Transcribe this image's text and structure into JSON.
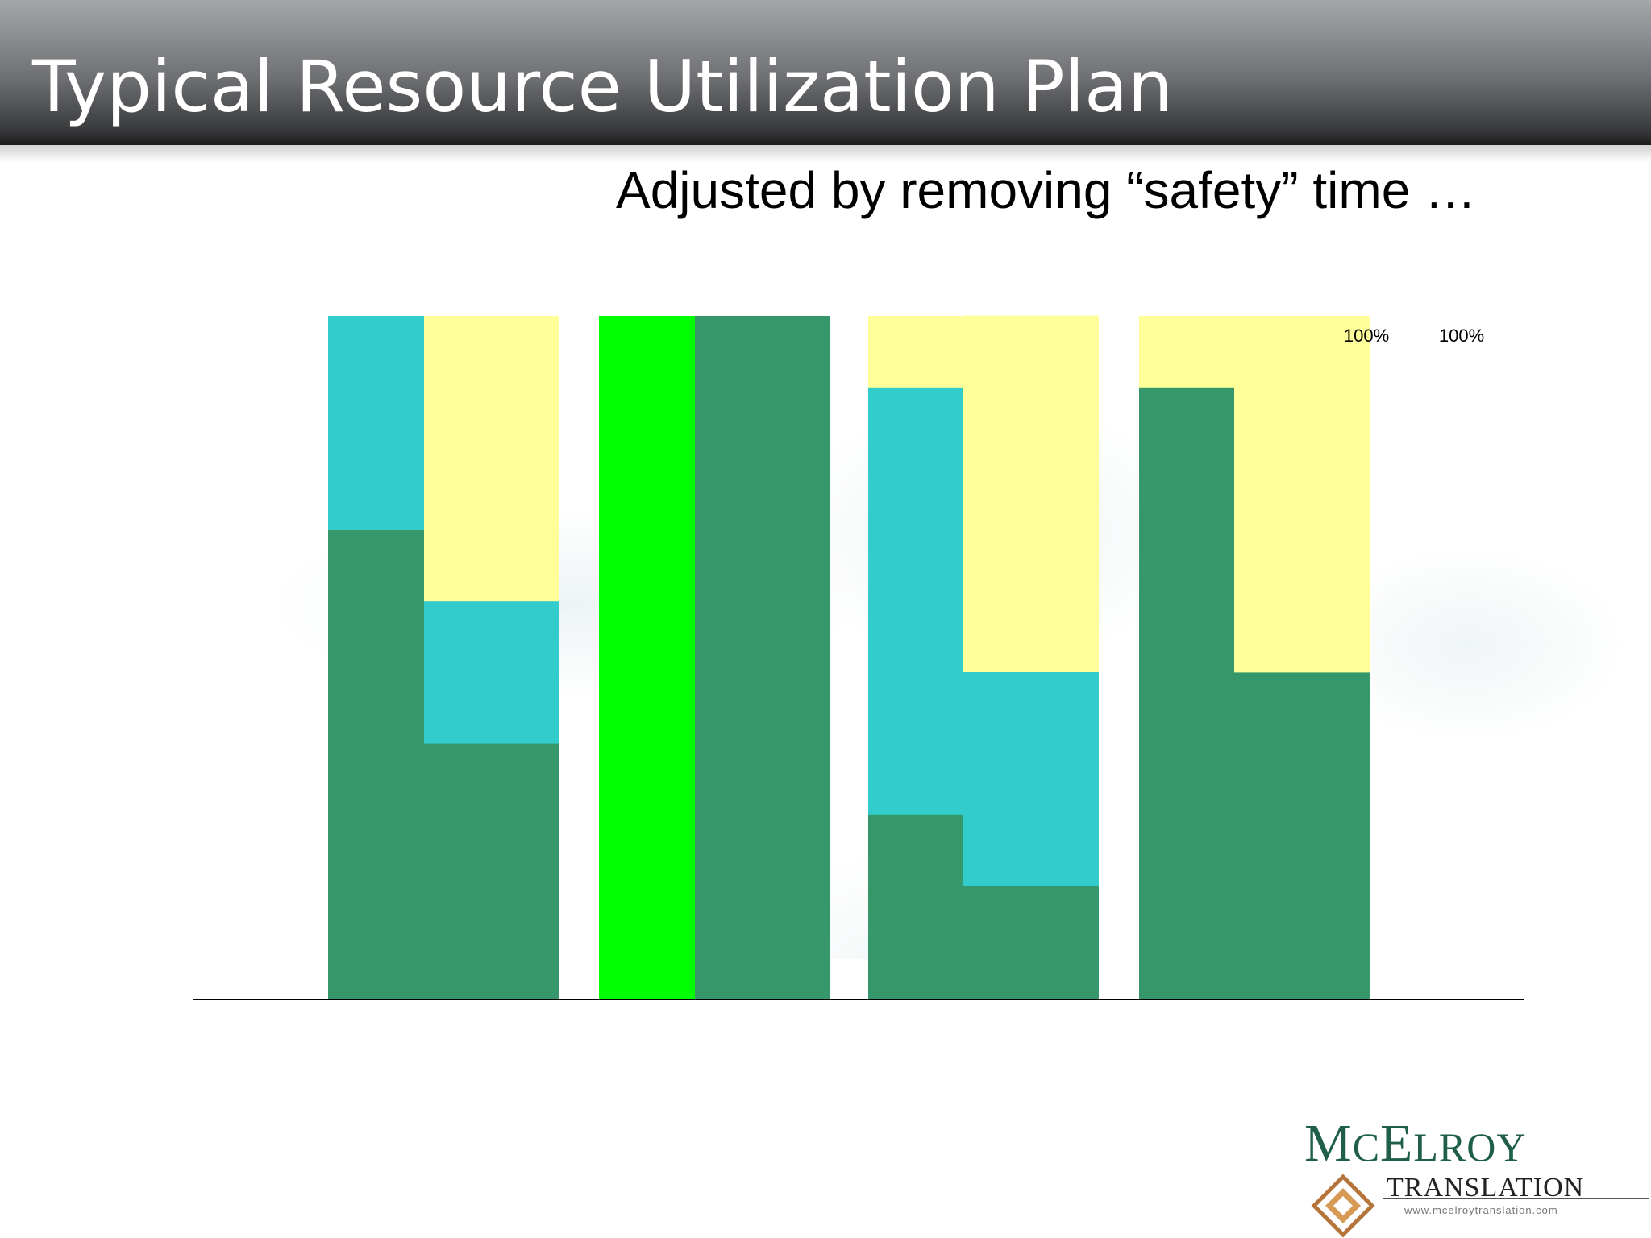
{
  "slide": {
    "title": "Typical Resource Utilization Plan",
    "subtitle": "Adjusted by removing “safety” time …"
  },
  "colors": {
    "dark_green": "#36976b",
    "teal": "#33cccc",
    "light_yellow": "#ffff99",
    "bright_green": "#00ff00"
  },
  "chart_data": {
    "type": "bar",
    "stacked": true,
    "ylim": [
      0,
      100
    ],
    "grid": false,
    "legend": "none",
    "bars": [
      {
        "segments": [
          {
            "color": "#36976b",
            "value": 68.75
          },
          {
            "color": "#33cccc",
            "value": 31.25
          }
        ]
      },
      {
        "segments": [
          {
            "color": "#36976b",
            "value": 37.5
          },
          {
            "color": "#33cccc",
            "value": 20.8
          },
          {
            "color": "#ffff99",
            "value": 41.7
          }
        ]
      },
      {
        "segments": [
          {
            "color": "#00ff00",
            "value": 100
          }
        ]
      },
      {
        "segments": [
          {
            "color": "#36976b",
            "value": 100
          }
        ]
      },
      {
        "segments": [
          {
            "color": "#36976b",
            "value": 27.1
          },
          {
            "color": "#33cccc",
            "value": 62.5
          },
          {
            "color": "#ffff99",
            "value": 10.4
          }
        ]
      },
      {
        "segments": [
          {
            "color": "#36976b",
            "value": 16.7
          },
          {
            "color": "#33cccc",
            "value": 31.25
          },
          {
            "color": "#ffff99",
            "value": 52.1
          }
        ]
      },
      {
        "segments": [
          {
            "color": "#36976b",
            "value": 89.6
          },
          {
            "color": "#ffff99",
            "value": 10.4
          }
        ]
      },
      {
        "segments": [
          {
            "color": "#36976b",
            "value": 47.9
          },
          {
            "color": "#ffff99",
            "value": 52.1
          }
        ]
      },
      {
        "segments": [],
        "label": "100%"
      },
      {
        "segments": [],
        "label": "100%"
      }
    ]
  },
  "logo": {
    "name": "McElroy",
    "subline": "Translation",
    "url": "www.mcelroytranslation.com"
  }
}
